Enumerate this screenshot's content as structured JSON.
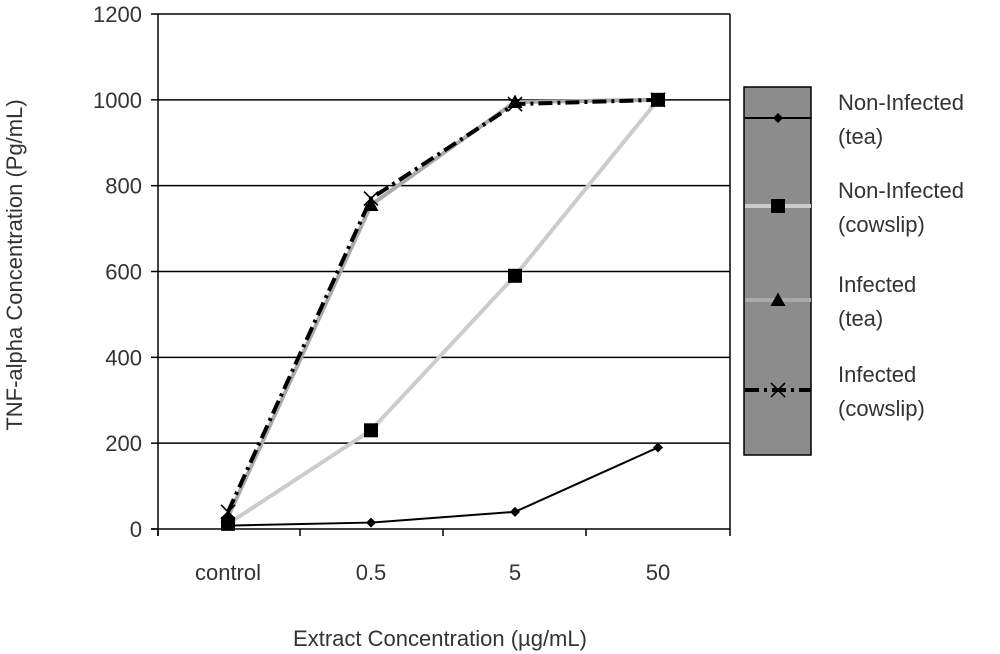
{
  "chart_data": {
    "type": "line",
    "categories": [
      "control",
      "0.5",
      "5",
      "50"
    ],
    "xlabel": "Extract Concentration (µg/mL)",
    "ylabel": "TNF-alpha Concentration (Pg/mL)",
    "ylim": [
      0,
      1200
    ],
    "yticks": [
      0,
      200,
      400,
      600,
      800,
      1000,
      1200
    ],
    "grid": true,
    "legend_position": "right",
    "series": [
      {
        "name_line1": "Non-Infected",
        "name_line2": "(tea)",
        "values": [
          8,
          15,
          40,
          190
        ],
        "color": "#000000",
        "marker": "diamond",
        "dash": ""
      },
      {
        "name_line1": "Non-Infected",
        "name_line2": "(cowslip)",
        "values": [
          12,
          230,
          590,
          1000
        ],
        "color": "#cccccc",
        "marker": "square",
        "dash": ""
      },
      {
        "name_line1": "Infected",
        "name_line2": "(tea)",
        "values": [
          28,
          755,
          995,
          1000
        ],
        "color": "#aaaaaa",
        "marker": "triangle",
        "dash": ""
      },
      {
        "name_line1": "Infected",
        "name_line2": "(cowslip)",
        "values": [
          40,
          770,
          990,
          1000
        ],
        "color": "#000000",
        "marker": "x",
        "dash": "14,5,3,5"
      }
    ]
  }
}
